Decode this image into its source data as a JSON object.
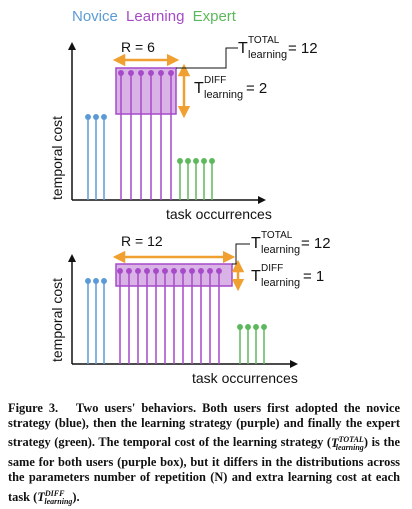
{
  "legend": {
    "items": [
      {
        "label": "Novice",
        "color": "#5b9bd5"
      },
      {
        "label": "Learning",
        "color": "#a64ac9"
      },
      {
        "label": "Expert",
        "color": "#5cb85c"
      }
    ]
  },
  "colors": {
    "novice": "#5b9bd5",
    "learning": "#a64ac9",
    "expert": "#5cb85c",
    "box_fill": "#d9b3e6",
    "arrow": "#f0a030"
  },
  "top_panel": {
    "r_label": "R = 6",
    "total_T": "T",
    "total_sup": "TOTAL",
    "total_sub": "learning",
    "total_value": "= 12",
    "diff_T": "T",
    "diff_sup": "DIFF",
    "diff_sub": "learning",
    "diff_value": "= 2",
    "y_axis": "temporal cost",
    "x_axis": "task occurrences"
  },
  "bottom_panel": {
    "r_label": "R = 12",
    "total_T": "T",
    "total_sup": "TOTAL",
    "total_sub": "learning",
    "total_value": "= 12",
    "diff_T": "T",
    "diff_sup": "DIFF",
    "diff_sub": "learning",
    "diff_value": "= 1",
    "y_axis": "temporal cost",
    "x_axis": "task occurrences"
  },
  "caption": {
    "figure_label": "Figure 3.",
    "text_1": "Two users' behaviors. Both users first adopted the novice strategy (blue), then the learning strategy (purple) and finally the expert strategy (green). The temporal cost of the learning strategy (",
    "t": "T",
    "t_sup": "TOTAL",
    "t_sub": "learning",
    "text_2": ") is the same for both users (purple box), but it differs in the distributions across the parameters number of repetition (N) and extra learning cost at each task (",
    "t2": "T",
    "t2_sup": "DIFF",
    "t2_sub": "learning",
    "text_3": ")."
  }
}
